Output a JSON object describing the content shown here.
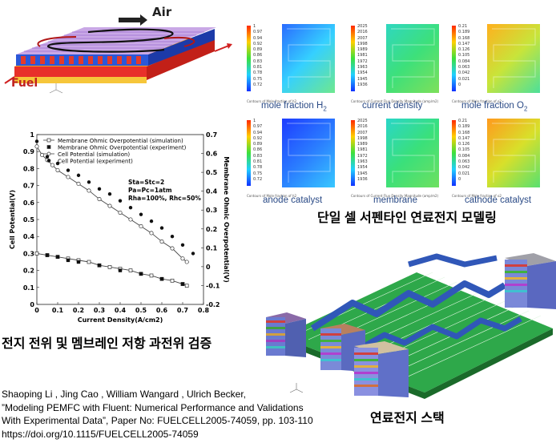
{
  "diagram_top": {
    "air_label": "Air",
    "fuel_label": "Fuel"
  },
  "contours": {
    "title": "단일 셀 서펜타인 연료전지 모델링",
    "panels": [
      {
        "label": "mole fraction H",
        "sub": "2",
        "caption": "Contours of Mole fraction of h2",
        "ticks": [
          "1",
          "0.97",
          "0.94",
          "0.92",
          "0.89",
          "0.86",
          "0.83",
          "0.81",
          "0.78",
          "0.75",
          "0.72"
        ],
        "colors": [
          "#2a6bff",
          "#35d0ff",
          "#6ee88e"
        ]
      },
      {
        "label": "current density",
        "sub": "",
        "caption": "Contours of Current Flux Density Magnitude (amp/m2)",
        "ticks": [
          "2025",
          "2016",
          "2007",
          "1998",
          "1989",
          "1981",
          "1972",
          "1963",
          "1954",
          "1945",
          "1936"
        ],
        "colors": [
          "#2fd7c0",
          "#3de07a",
          "#7ee05a"
        ]
      },
      {
        "label": "mole fraction O",
        "sub": "2",
        "caption": "Contours of Mole fraction of o2",
        "ticks": [
          "0.21",
          "0.189",
          "0.168",
          "0.147",
          "0.126",
          "0.105",
          "0.084",
          "0.063",
          "0.042",
          "0.021",
          "0"
        ],
        "colors": [
          "#ffb01e",
          "#c8e43a",
          "#4ce09a"
        ]
      },
      {
        "label": "anode catalyst",
        "sub": "",
        "caption": "Contours of Mole fraction of h2",
        "ticks": [
          "1",
          "0.97",
          "0.94",
          "0.92",
          "0.89",
          "0.86",
          "0.83",
          "0.81",
          "0.78",
          "0.75",
          "0.72"
        ],
        "colors": [
          "#1e3cff",
          "#2a7bff",
          "#38c8ff"
        ]
      },
      {
        "label": "membrane",
        "sub": "",
        "caption": "Contours of Current Flux Density Magnitude (amp/m2)",
        "ticks": [
          "2025",
          "2016",
          "2007",
          "1998",
          "1989",
          "1981",
          "1972",
          "1963",
          "1954",
          "1945",
          "1936"
        ],
        "colors": [
          "#2ad6c8",
          "#3ae07a",
          "#6ee060"
        ]
      },
      {
        "label": "cathode catalyst",
        "sub": "",
        "caption": "Contours of Mole fraction of o2",
        "ticks": [
          "0.21",
          "0.189",
          "0.168",
          "0.147",
          "0.126",
          "0.105",
          "0.084",
          "0.063",
          "0.042",
          "0.021",
          "0"
        ],
        "colors": [
          "#ff9a1e",
          "#d8e02a",
          "#58e070"
        ]
      }
    ]
  },
  "chart_title": "전지 전위 및 멤브레인 저항 과전위 검증",
  "chart_data": {
    "type": "line",
    "xlabel": "Current Density(A/cm2)",
    "ylabel": "Cell Potential(V)",
    "y2label": "Membrane Ohmic Overpotential(V)",
    "xlim": [
      0,
      0.8
    ],
    "ylim": [
      0,
      1
    ],
    "y2lim": [
      -0.2,
      0.7
    ],
    "x_ticks": [
      "0",
      "0.1",
      "0.2",
      "0.3",
      "0.4",
      "0.5",
      "0.6",
      "0.7",
      "0.8"
    ],
    "y_ticks": [
      "0",
      "0.1",
      "0.2",
      "0.3",
      "0.4",
      "0.5",
      "0.6",
      "0.7",
      "0.8",
      "0.9",
      "1"
    ],
    "y2_ticks": [
      "-0.2",
      "-0.1",
      "0",
      "0.1",
      "0.2",
      "0.3",
      "0.4",
      "0.5",
      "0.6",
      "0.7"
    ],
    "legend": [
      "Membrane Ohmic Overpotential (simulation)",
      "Membrane Ohmic Overpotential (experiment)",
      "Cell Potential (simulation)",
      "Cell Potential (experiment)"
    ],
    "annotation": [
      "Sta=Stc=2",
      "Pa=Pc=1atm",
      "Rha=100%, Rhc=50%"
    ],
    "series": [
      {
        "name": "Cell Potential (simulation)",
        "axis": "left",
        "style": "line-open-circle",
        "x": [
          0,
          0.025,
          0.05,
          0.075,
          0.1,
          0.15,
          0.2,
          0.25,
          0.3,
          0.35,
          0.4,
          0.45,
          0.5,
          0.55,
          0.6,
          0.65,
          0.7,
          0.72
        ],
        "y": [
          0.93,
          0.88,
          0.85,
          0.82,
          0.79,
          0.75,
          0.71,
          0.67,
          0.62,
          0.58,
          0.54,
          0.5,
          0.46,
          0.42,
          0.37,
          0.33,
          0.27,
          0.25
        ]
      },
      {
        "name": "Cell Potential (experiment)",
        "axis": "left",
        "style": "filled-circle",
        "x": [
          0,
          0.05,
          0.1,
          0.15,
          0.2,
          0.25,
          0.3,
          0.35,
          0.4,
          0.45,
          0.5,
          0.55,
          0.6,
          0.65,
          0.7,
          0.75
        ],
        "y": [
          0.96,
          0.87,
          0.83,
          0.79,
          0.76,
          0.72,
          0.68,
          0.65,
          0.61,
          0.57,
          0.53,
          0.49,
          0.45,
          0.4,
          0.35,
          0.3
        ]
      },
      {
        "name": "Membrane Ohmic Overpotential (simulation)",
        "axis": "left",
        "style": "line-open-square",
        "x": [
          0,
          0.05,
          0.1,
          0.15,
          0.2,
          0.25,
          0.3,
          0.35,
          0.4,
          0.45,
          0.5,
          0.55,
          0.6,
          0.65,
          0.7,
          0.72
        ],
        "y": [
          0.3,
          0.29,
          0.28,
          0.27,
          0.26,
          0.25,
          0.23,
          0.22,
          0.21,
          0.2,
          0.18,
          0.17,
          0.15,
          0.14,
          0.12,
          0.11
        ]
      },
      {
        "name": "Membrane Ohmic Overpotential (experiment)",
        "axis": "left",
        "style": "filled-square",
        "x": [
          0.05,
          0.1,
          0.15,
          0.2,
          0.3,
          0.4,
          0.5,
          0.6,
          0.7
        ],
        "y": [
          0.29,
          0.28,
          0.26,
          0.25,
          0.23,
          0.2,
          0.18,
          0.15,
          0.12
        ]
      }
    ]
  },
  "stack_title": "연료전지 스택",
  "reference": {
    "line1": "Shaoping Li , Jing Cao , William Wangard , Ulrich Becker,",
    "line2": "”Modeling PEMFC with Fluent: Numerical Performance and Validations",
    "line3": "With Experimental Data”, Paper No: FUELCELL2005-74059, pp. 103-110",
    "line4": "https://doi.org/10.1115/FUELCELL2005-74059"
  }
}
